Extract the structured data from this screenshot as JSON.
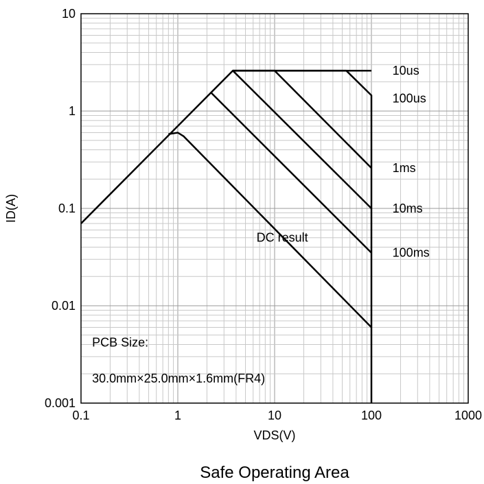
{
  "chart_data": {
    "type": "line",
    "title": "Safe Operating Area",
    "xlabel": "VDS(V)",
    "ylabel": "ID(A)",
    "x_scale": "log",
    "y_scale": "log",
    "xlim": [
      0.1,
      1000
    ],
    "ylim": [
      0.001,
      10
    ],
    "grid": true,
    "x_ticks": [
      "0.1",
      "1",
      "10",
      "100",
      "1000"
    ],
    "y_ticks": [
      "0.001",
      "0.01",
      "0.1",
      "1",
      "10"
    ],
    "series": [
      {
        "name": "10us",
        "points": [
          [
            3.7,
            2.6
          ],
          [
            100,
            2.6
          ]
        ],
        "label": {
          "text": "10us",
          "x": 165,
          "y": 2.6
        }
      },
      {
        "name": "100us",
        "points": [
          [
            3.7,
            2.6
          ],
          [
            55,
            2.6
          ],
          [
            100,
            1.45
          ],
          [
            100,
            0.001
          ]
        ],
        "label": {
          "text": "100us",
          "x": 165,
          "y": 1.35
        }
      },
      {
        "name": "1ms",
        "points": [
          [
            3.7,
            2.6
          ],
          [
            10,
            2.6
          ],
          [
            100,
            0.26
          ]
        ],
        "label": {
          "text": "1ms",
          "x": 165,
          "y": 0.26
        }
      },
      {
        "name": "10ms",
        "points": [
          [
            0.1,
            0.07
          ],
          [
            3.7,
            2.6
          ],
          [
            100,
            0.1
          ]
        ],
        "label": {
          "text": "10ms",
          "x": 165,
          "y": 0.1
        }
      },
      {
        "name": "100ms",
        "points": [
          [
            2.2,
            1.55
          ],
          [
            100,
            0.035
          ]
        ],
        "label": {
          "text": "100ms",
          "x": 165,
          "y": 0.035
        }
      },
      {
        "name": "DC result",
        "points": [
          [
            0.8,
            0.58
          ],
          [
            1.0,
            0.6
          ],
          [
            1.15,
            0.55
          ],
          [
            100,
            0.006
          ]
        ],
        "label": {
          "text": "DC result",
          "x": 6.5,
          "y": 0.05
        }
      }
    ],
    "annotations": [
      {
        "text": "PCB Size:",
        "x": 0.13,
        "y": 0.0042
      },
      {
        "text": "30.0mm×25.0mm×1.6mm(FR4)",
        "x": 0.13,
        "y": 0.0018
      }
    ]
  }
}
